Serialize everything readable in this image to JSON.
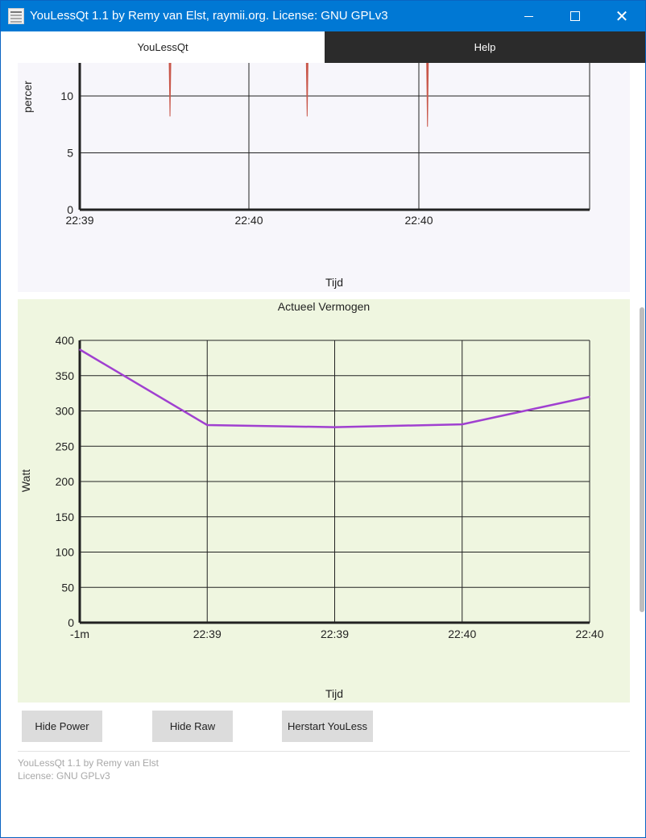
{
  "window": {
    "title": "YouLessQt 1.1 by Remy van Elst, raymii.org. License: GNU GPLv3"
  },
  "tabs": [
    {
      "label": "YouLessQt"
    },
    {
      "label": "Help"
    }
  ],
  "top_chart": {
    "ylabel": "percer",
    "xlabel": "Tijd",
    "y_ticks": [
      "0",
      "5",
      "10"
    ],
    "x_ticks": [
      "22:39",
      "22:40",
      "22:40"
    ],
    "series_color": "#c9574a"
  },
  "bottom_chart": {
    "title": "Actueel Vermogen",
    "ylabel": "Watt",
    "xlabel": "Tijd",
    "y_ticks": [
      "0",
      "50",
      "100",
      "150",
      "200",
      "250",
      "300",
      "350",
      "400"
    ],
    "x_ticks": [
      "-1m",
      "22:39",
      "22:39",
      "22:40",
      "22:40"
    ],
    "series_color": "#a040d0",
    "background": "#eff6e0"
  },
  "chart_data": [
    {
      "type": "bar",
      "title": "",
      "xlabel": "Tijd",
      "ylabel": "percer",
      "ylim": [
        0,
        13
      ],
      "categories": [
        "22:39",
        "22:40",
        "22:40"
      ],
      "spikes": [
        {
          "x_fraction": 0.15,
          "low": 8.2
        },
        {
          "x_fraction": 0.378,
          "low": 8.2
        },
        {
          "x_fraction": 0.578,
          "low": 7.3
        }
      ],
      "grid": true
    },
    {
      "type": "line",
      "title": "Actueel Vermogen",
      "xlabel": "Tijd",
      "ylabel": "Watt",
      "ylim": [
        0,
        400
      ],
      "categories": [
        "-1m",
        "22:39",
        "22:39",
        "22:40",
        "22:40"
      ],
      "series": [
        {
          "values": [
            387,
            280,
            277,
            281,
            320
          ]
        }
      ],
      "grid": true
    }
  ],
  "buttons": {
    "hide_power": "Hide Power",
    "hide_raw": "Hide Raw",
    "herstart": "Herstart YouLess"
  },
  "footer": {
    "line1": "YouLessQt 1.1 by Remy van Elst",
    "line2": "License: GNU GPLv3"
  }
}
